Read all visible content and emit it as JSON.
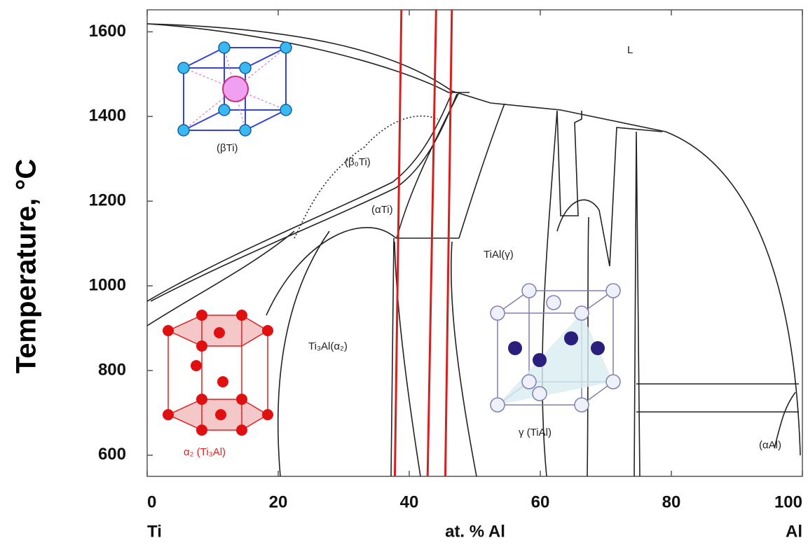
{
  "chart_data": {
    "type": "phase-diagram",
    "xlabel": "at. % Al",
    "ylabel": "Temperature, °C",
    "x_end_labels": [
      "Ti",
      "Al"
    ],
    "xlim": [
      0,
      100
    ],
    "ylim": [
      550,
      1652
    ],
    "xticks": [
      0,
      20,
      40,
      60,
      80,
      100
    ],
    "yticks": [
      600,
      800,
      1000,
      1200,
      1400,
      1600
    ],
    "phase_labels": [
      "L",
      "(βTi)",
      "(β₀Ti)",
      "(αTi)",
      "TiAl(γ)",
      "Ti₃Al(α₂)",
      "(αAl)"
    ],
    "structure_labels": [
      "(βTi)",
      "α₂ (Ti₃Al)",
      "γ (TiAl)"
    ],
    "series": [
      {
        "color": "#d62020",
        "x": [
          37.8,
          38.8
        ],
        "values": [
          550,
          1652
        ]
      },
      {
        "color": "#d62020",
        "x": [
          42.8,
          44.1
        ],
        "values": [
          550,
          1652
        ]
      },
      {
        "color": "#d62020",
        "x": [
          45.5,
          46.5
        ],
        "values": [
          550,
          1652
        ]
      }
    ]
  }
}
